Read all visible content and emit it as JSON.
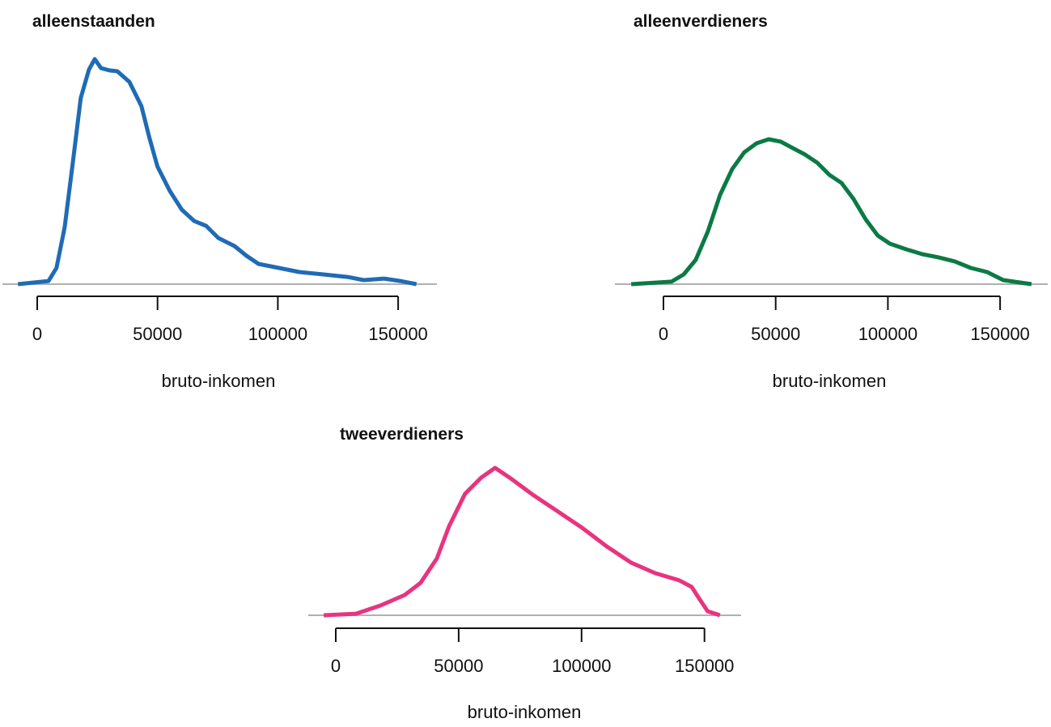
{
  "chart_data": [
    {
      "type": "line",
      "title": "alleenstaanden",
      "xlabel": "bruto-inkomen",
      "ylabel": "",
      "y_units": "relative density (unitless, no y-axis shown)",
      "xticks": [
        0,
        50000,
        100000,
        150000
      ],
      "xtick_labels": [
        "0",
        "50000",
        "100000",
        "150000"
      ],
      "color": "#1f6bb5",
      "x": [
        -8000,
        4700,
        8000,
        11400,
        14800,
        18100,
        21500,
        23900,
        26500,
        29900,
        33300,
        38300,
        43300,
        46700,
        50000,
        55100,
        60100,
        65200,
        70200,
        75300,
        82000,
        87000,
        92000,
        100500,
        108900,
        119000,
        129000,
        135700,
        144100,
        150900,
        157600
      ],
      "y": [
        0,
        0.014,
        0.072,
        0.252,
        0.54,
        0.827,
        0.953,
        1.0,
        0.96,
        0.95,
        0.946,
        0.899,
        0.791,
        0.647,
        0.522,
        0.414,
        0.331,
        0.281,
        0.259,
        0.205,
        0.169,
        0.126,
        0.09,
        0.072,
        0.054,
        0.043,
        0.032,
        0.018,
        0.025,
        0.014,
        0
      ]
    },
    {
      "type": "line",
      "title": "alleenverdieners",
      "xlabel": "bruto-inkomen",
      "ylabel": "",
      "y_units": "relative density (unitless, no y-axis shown)",
      "xticks": [
        0,
        50000,
        100000,
        150000
      ],
      "xtick_labels": [
        "0",
        "50000",
        "100000",
        "150000"
      ],
      "color": "#0b7a45",
      "x": [
        -14400,
        3600,
        9000,
        14400,
        19800,
        25200,
        30600,
        36000,
        41500,
        46900,
        52300,
        57700,
        63100,
        68500,
        73900,
        79300,
        84700,
        90100,
        95500,
        100900,
        108100,
        115400,
        122600,
        129800,
        137000,
        144200,
        151400,
        164000
      ],
      "y": [
        0,
        0.011,
        0.043,
        0.108,
        0.234,
        0.396,
        0.511,
        0.586,
        0.626,
        0.644,
        0.633,
        0.604,
        0.576,
        0.54,
        0.486,
        0.45,
        0.378,
        0.288,
        0.216,
        0.18,
        0.155,
        0.133,
        0.119,
        0.101,
        0.072,
        0.054,
        0.018,
        0
      ]
    },
    {
      "type": "line",
      "title": "tweeverdieners",
      "xlabel": "bruto-inkomen",
      "ylabel": "",
      "y_units": "relative density (unitless, no y-axis shown)",
      "xticks": [
        0,
        50000,
        100000,
        150000
      ],
      "xtick_labels": [
        "0",
        "50000",
        "100000",
        "150000"
      ],
      "color": "#e8347f",
      "x": [
        -4900,
        8200,
        18100,
        28000,
        34500,
        41100,
        46100,
        52600,
        59200,
        64800,
        70700,
        80600,
        90500,
        100300,
        110200,
        120100,
        130000,
        139800,
        144800,
        148000,
        151300,
        156300
      ],
      "y": [
        0,
        0.007,
        0.043,
        0.09,
        0.144,
        0.252,
        0.396,
        0.54,
        0.612,
        0.655,
        0.612,
        0.532,
        0.46,
        0.388,
        0.306,
        0.234,
        0.187,
        0.155,
        0.126,
        0.072,
        0.018,
        0
      ]
    }
  ]
}
